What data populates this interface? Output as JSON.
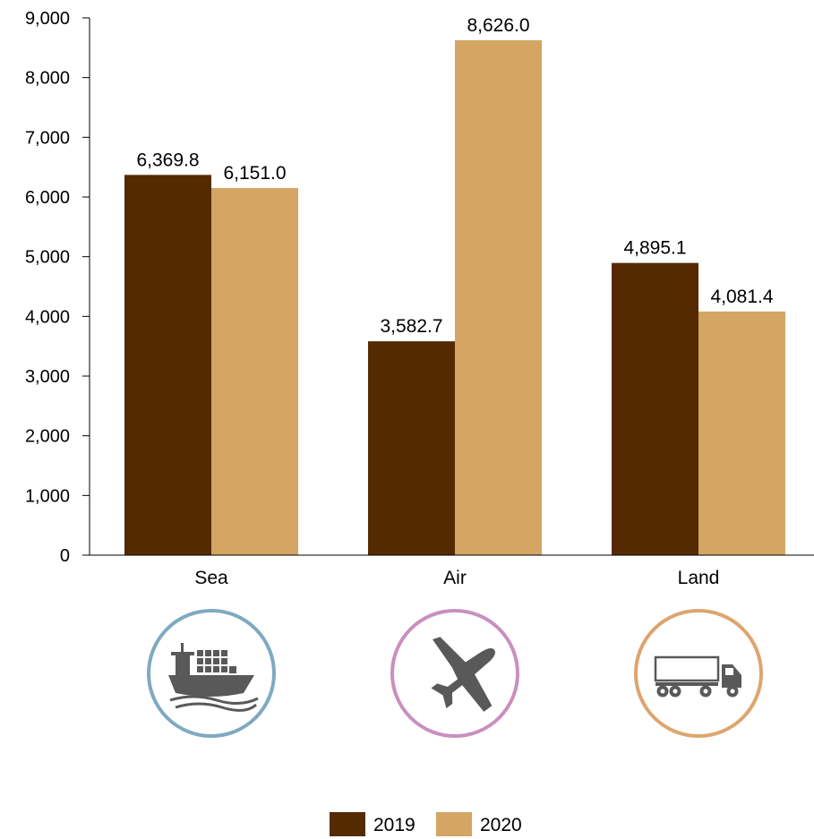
{
  "chart_data": {
    "type": "bar",
    "categories": [
      "Sea",
      "Air",
      "Land"
    ],
    "series": [
      {
        "name": "2019",
        "values": [
          6369.8,
          3582.7,
          4895.1
        ],
        "labels": [
          "6,369.8",
          "3,582.7",
          "4,895.1"
        ]
      },
      {
        "name": "2020",
        "values": [
          6151.0,
          8626.0,
          4081.4
        ],
        "labels": [
          "6,151.0",
          "8,626.0",
          "4,081.4"
        ]
      }
    ],
    "ylim": [
      0,
      9000
    ],
    "yticks": [
      0,
      1000,
      2000,
      3000,
      4000,
      5000,
      6000,
      7000,
      8000,
      9000
    ],
    "ytick_labels": [
      "0",
      "1,000",
      "2,000",
      "3,000",
      "4,000",
      "5,000",
      "6,000",
      "7,000",
      "8,000",
      "9,000"
    ],
    "grid": false,
    "legend_position": "bottom-center",
    "colors": {
      "2019": "#552A00",
      "2020": "#D4A563"
    },
    "icons": [
      {
        "name": "ship-icon",
        "ring_color": "#7FA9C0",
        "fill_color": "#595959"
      },
      {
        "name": "airplane-icon",
        "ring_color": "#C98FBF",
        "fill_color": "#595959"
      },
      {
        "name": "truck-icon",
        "ring_color": "#DDA56E",
        "fill_color": "#595959"
      }
    ]
  }
}
